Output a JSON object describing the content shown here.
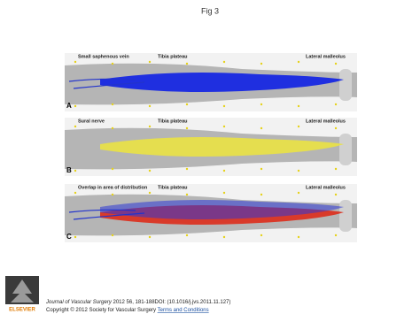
{
  "title": "Fig 3",
  "panels": [
    {
      "letter": "A",
      "label": "Small saphenous vein",
      "tibia": "Tibia plateau",
      "malleolus": "Lateral malleolus"
    },
    {
      "letter": "B",
      "label": "Sural nerve",
      "tibia": "Tibia plateau",
      "malleolus": "Lateral malleolus"
    },
    {
      "letter": "C",
      "label": "Overlap in area of distribution",
      "tibia": "Tibia plateau",
      "malleolus": "Lateral malleolus"
    }
  ],
  "footer": {
    "journal": "Journal of Vascular Surgery",
    "citation": "2012 56, 181-188DOI: (10.1016/j.jvs.2011.11.127)",
    "copyright": "Copyright © 2012 Society for Vascular Surgery",
    "link": "Terms and Conditions",
    "publisher": "ELSEVIER"
  }
}
